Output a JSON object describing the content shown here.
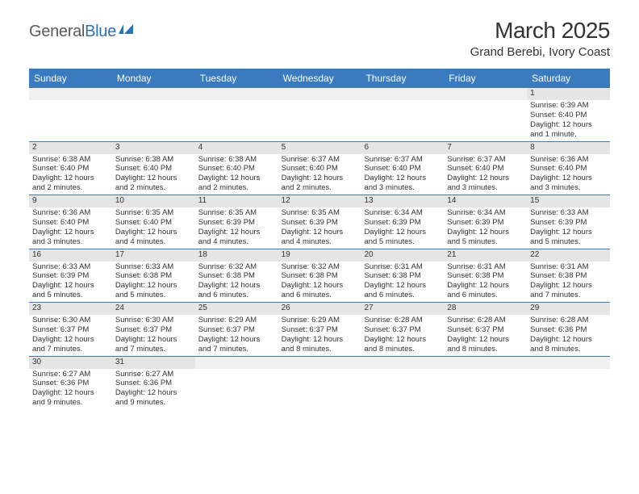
{
  "brand": {
    "text1": "General",
    "text2": "Blue",
    "color_gray": "#5a5a5a",
    "color_blue": "#2d71b8"
  },
  "title": "March 2025",
  "location": "Grand Berebi, Ivory Coast",
  "accent_color": "#3a7bbf",
  "daynum_bg": "#e5e5e5",
  "blank_bg": "#f0f0f0",
  "text_color": "#333333",
  "font_family": "Arial, Helvetica, sans-serif",
  "day_headers": [
    "Sunday",
    "Monday",
    "Tuesday",
    "Wednesday",
    "Thursday",
    "Friday",
    "Saturday"
  ],
  "weeks": [
    [
      null,
      null,
      null,
      null,
      null,
      null,
      {
        "n": "1",
        "sunrise": "Sunrise: 6:39 AM",
        "sunset": "Sunset: 6:40 PM",
        "daylight": "Daylight: 12 hours and 1 minute."
      }
    ],
    [
      {
        "n": "2",
        "sunrise": "Sunrise: 6:38 AM",
        "sunset": "Sunset: 6:40 PM",
        "daylight": "Daylight: 12 hours and 2 minutes."
      },
      {
        "n": "3",
        "sunrise": "Sunrise: 6:38 AM",
        "sunset": "Sunset: 6:40 PM",
        "daylight": "Daylight: 12 hours and 2 minutes."
      },
      {
        "n": "4",
        "sunrise": "Sunrise: 6:38 AM",
        "sunset": "Sunset: 6:40 PM",
        "daylight": "Daylight: 12 hours and 2 minutes."
      },
      {
        "n": "5",
        "sunrise": "Sunrise: 6:37 AM",
        "sunset": "Sunset: 6:40 PM",
        "daylight": "Daylight: 12 hours and 2 minutes."
      },
      {
        "n": "6",
        "sunrise": "Sunrise: 6:37 AM",
        "sunset": "Sunset: 6:40 PM",
        "daylight": "Daylight: 12 hours and 3 minutes."
      },
      {
        "n": "7",
        "sunrise": "Sunrise: 6:37 AM",
        "sunset": "Sunset: 6:40 PM",
        "daylight": "Daylight: 12 hours and 3 minutes."
      },
      {
        "n": "8",
        "sunrise": "Sunrise: 6:36 AM",
        "sunset": "Sunset: 6:40 PM",
        "daylight": "Daylight: 12 hours and 3 minutes."
      }
    ],
    [
      {
        "n": "9",
        "sunrise": "Sunrise: 6:36 AM",
        "sunset": "Sunset: 6:40 PM",
        "daylight": "Daylight: 12 hours and 3 minutes."
      },
      {
        "n": "10",
        "sunrise": "Sunrise: 6:35 AM",
        "sunset": "Sunset: 6:40 PM",
        "daylight": "Daylight: 12 hours and 4 minutes."
      },
      {
        "n": "11",
        "sunrise": "Sunrise: 6:35 AM",
        "sunset": "Sunset: 6:39 PM",
        "daylight": "Daylight: 12 hours and 4 minutes."
      },
      {
        "n": "12",
        "sunrise": "Sunrise: 6:35 AM",
        "sunset": "Sunset: 6:39 PM",
        "daylight": "Daylight: 12 hours and 4 minutes."
      },
      {
        "n": "13",
        "sunrise": "Sunrise: 6:34 AM",
        "sunset": "Sunset: 6:39 PM",
        "daylight": "Daylight: 12 hours and 5 minutes."
      },
      {
        "n": "14",
        "sunrise": "Sunrise: 6:34 AM",
        "sunset": "Sunset: 6:39 PM",
        "daylight": "Daylight: 12 hours and 5 minutes."
      },
      {
        "n": "15",
        "sunrise": "Sunrise: 6:33 AM",
        "sunset": "Sunset: 6:39 PM",
        "daylight": "Daylight: 12 hours and 5 minutes."
      }
    ],
    [
      {
        "n": "16",
        "sunrise": "Sunrise: 6:33 AM",
        "sunset": "Sunset: 6:39 PM",
        "daylight": "Daylight: 12 hours and 5 minutes."
      },
      {
        "n": "17",
        "sunrise": "Sunrise: 6:33 AM",
        "sunset": "Sunset: 6:38 PM",
        "daylight": "Daylight: 12 hours and 5 minutes."
      },
      {
        "n": "18",
        "sunrise": "Sunrise: 6:32 AM",
        "sunset": "Sunset: 6:38 PM",
        "daylight": "Daylight: 12 hours and 6 minutes."
      },
      {
        "n": "19",
        "sunrise": "Sunrise: 6:32 AM",
        "sunset": "Sunset: 6:38 PM",
        "daylight": "Daylight: 12 hours and 6 minutes."
      },
      {
        "n": "20",
        "sunrise": "Sunrise: 6:31 AM",
        "sunset": "Sunset: 6:38 PM",
        "daylight": "Daylight: 12 hours and 6 minutes."
      },
      {
        "n": "21",
        "sunrise": "Sunrise: 6:31 AM",
        "sunset": "Sunset: 6:38 PM",
        "daylight": "Daylight: 12 hours and 6 minutes."
      },
      {
        "n": "22",
        "sunrise": "Sunrise: 6:31 AM",
        "sunset": "Sunset: 6:38 PM",
        "daylight": "Daylight: 12 hours and 7 minutes."
      }
    ],
    [
      {
        "n": "23",
        "sunrise": "Sunrise: 6:30 AM",
        "sunset": "Sunset: 6:37 PM",
        "daylight": "Daylight: 12 hours and 7 minutes."
      },
      {
        "n": "24",
        "sunrise": "Sunrise: 6:30 AM",
        "sunset": "Sunset: 6:37 PM",
        "daylight": "Daylight: 12 hours and 7 minutes."
      },
      {
        "n": "25",
        "sunrise": "Sunrise: 6:29 AM",
        "sunset": "Sunset: 6:37 PM",
        "daylight": "Daylight: 12 hours and 7 minutes."
      },
      {
        "n": "26",
        "sunrise": "Sunrise: 6:29 AM",
        "sunset": "Sunset: 6:37 PM",
        "daylight": "Daylight: 12 hours and 8 minutes."
      },
      {
        "n": "27",
        "sunrise": "Sunrise: 6:28 AM",
        "sunset": "Sunset: 6:37 PM",
        "daylight": "Daylight: 12 hours and 8 minutes."
      },
      {
        "n": "28",
        "sunrise": "Sunrise: 6:28 AM",
        "sunset": "Sunset: 6:37 PM",
        "daylight": "Daylight: 12 hours and 8 minutes."
      },
      {
        "n": "29",
        "sunrise": "Sunrise: 6:28 AM",
        "sunset": "Sunset: 6:36 PM",
        "daylight": "Daylight: 12 hours and 8 minutes."
      }
    ],
    [
      {
        "n": "30",
        "sunrise": "Sunrise: 6:27 AM",
        "sunset": "Sunset: 6:36 PM",
        "daylight": "Daylight: 12 hours and 9 minutes."
      },
      {
        "n": "31",
        "sunrise": "Sunrise: 6:27 AM",
        "sunset": "Sunset: 6:36 PM",
        "daylight": "Daylight: 12 hours and 9 minutes."
      },
      null,
      null,
      null,
      null,
      null
    ]
  ]
}
